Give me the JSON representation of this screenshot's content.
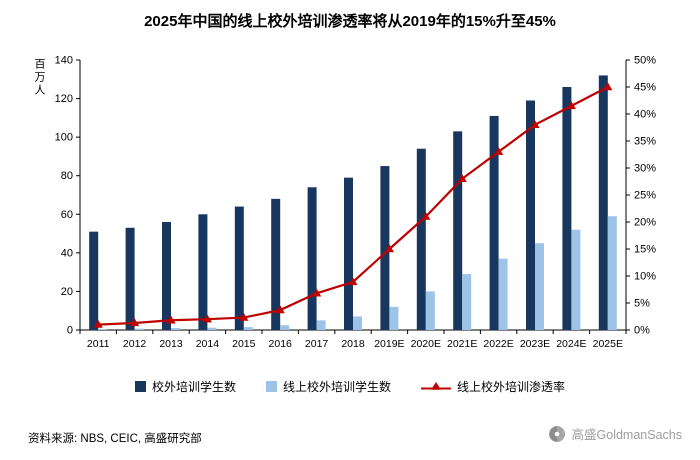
{
  "title": "2025年中国的线上校外培训渗透率将从2019年的15%升至45%",
  "source": "资料来源:  NBS, CEIC, 高盛研究部",
  "watermark": "高盛GoldmanSachs",
  "chart_data": {
    "type": "bar",
    "subtype": "bar+line combo, dual axis",
    "title": "2025年中国的线上校外培训渗透率将从2019年的15%升至45%",
    "xlabel": "",
    "ylabel_left": "百万人",
    "grid": false,
    "legend_position": "bottom",
    "categories": [
      "2011",
      "2012",
      "2013",
      "2014",
      "2015",
      "2016",
      "2017",
      "2018",
      "2019E",
      "2020E",
      "2021E",
      "2022E",
      "2023E",
      "2024E",
      "2025E"
    ],
    "series": [
      {
        "name": "校外培训学生数",
        "type": "bar",
        "axis": "left",
        "color": "#17375e",
        "values": [
          51,
          53,
          56,
          60,
          64,
          68,
          74,
          79,
          85,
          94,
          103,
          111,
          119,
          126,
          132
        ]
      },
      {
        "name": "线上校外培训学生数",
        "type": "bar",
        "axis": "left",
        "color": "#9dc3e6",
        "values": [
          0.5,
          0.7,
          1,
          1.2,
          1.5,
          2.5,
          5,
          7,
          12,
          20,
          29,
          37,
          45,
          52,
          59
        ]
      },
      {
        "name": "线上校外培训渗透率",
        "type": "line",
        "axis": "right",
        "color": "#c00000",
        "values": [
          1,
          1.3,
          1.8,
          2,
          2.3,
          3.7,
          6.8,
          8.9,
          15,
          21,
          28,
          33,
          38,
          41.5,
          45
        ]
      }
    ],
    "left_axis": {
      "min": 0,
      "max": 140,
      "ticks": [
        0,
        20,
        40,
        60,
        80,
        100,
        120,
        140
      ]
    },
    "right_axis": {
      "min": 0,
      "max": 50,
      "ticks": [
        0,
        5,
        10,
        15,
        20,
        25,
        30,
        35,
        40,
        45,
        50
      ],
      "suffix": "%"
    }
  }
}
